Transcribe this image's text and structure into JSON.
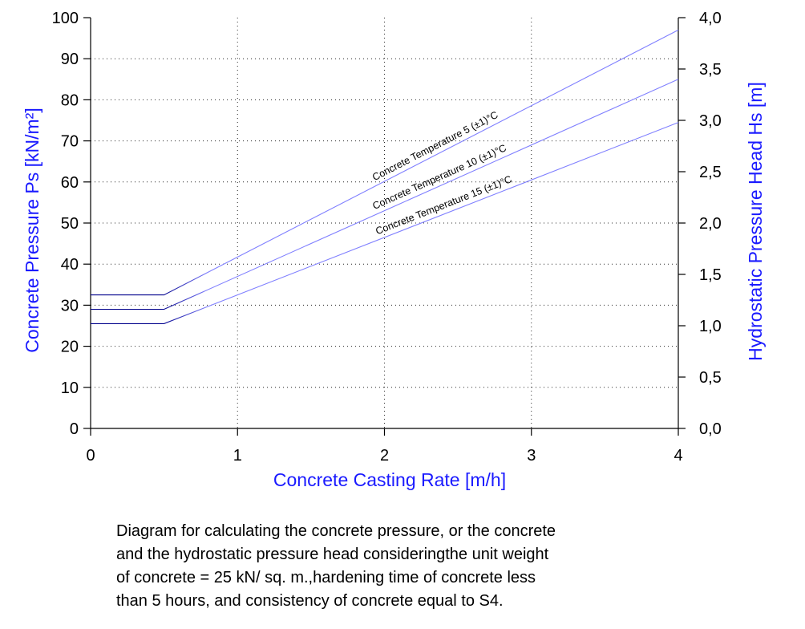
{
  "chart_data": {
    "type": "line",
    "x": [
      0,
      0.5,
      4
    ],
    "series": [
      {
        "name": "Concrete Temperature 5 (±1)°C",
        "values": [
          32.5,
          32.5,
          97
        ]
      },
      {
        "name": "Concrete Temperature 10 (±1)°C",
        "values": [
          29,
          29,
          85
        ]
      },
      {
        "name": "Concrete Temperature 15 (±1)°C",
        "values": [
          25.5,
          25.5,
          74.5
        ]
      }
    ],
    "xlabel": "Concrete Casting Rate [m/h]",
    "ylabel": "Concrete Pressure Ps [kN/m²]",
    "y2label": "Hydrostatic Pressure Head Hs [m]",
    "xlim": [
      0,
      4
    ],
    "ylim": [
      0,
      100
    ],
    "y2lim": [
      0,
      4
    ],
    "xticks": [
      0,
      1,
      2,
      3,
      4
    ],
    "xtick_labels": [
      "0",
      "1",
      "2",
      "3",
      "4"
    ],
    "yticks": [
      0,
      10,
      20,
      30,
      40,
      50,
      60,
      70,
      80,
      90,
      100
    ],
    "ytick_labels": [
      "0",
      "10",
      "20",
      "30",
      "40",
      "50",
      "60",
      "70",
      "80",
      "90",
      "100"
    ],
    "y2ticks": [
      0,
      0.5,
      1,
      1.5,
      2,
      2.5,
      3,
      3.5,
      4
    ],
    "y2tick_labels": [
      "0,0",
      "0,5",
      "1,0",
      "1,5",
      "2,0",
      "2,5",
      "3,0",
      "3,5",
      "4,0"
    ],
    "grid": true,
    "colors": {
      "axis_title": "#1a1aff",
      "line_low": "#00008b",
      "line_high": "#8080ff",
      "grid": "#000000"
    }
  },
  "caption": {
    "lines": [
      "Diagram for calculating the concrete pressure, or the concrete",
      "and the hydrostatic pressure head consideringthe unit weight",
      "of concrete = 25 kN/ sq. m.,hardening time of concrete less",
      "than 5 hours, and consistency of concrete equal to S4."
    ]
  }
}
